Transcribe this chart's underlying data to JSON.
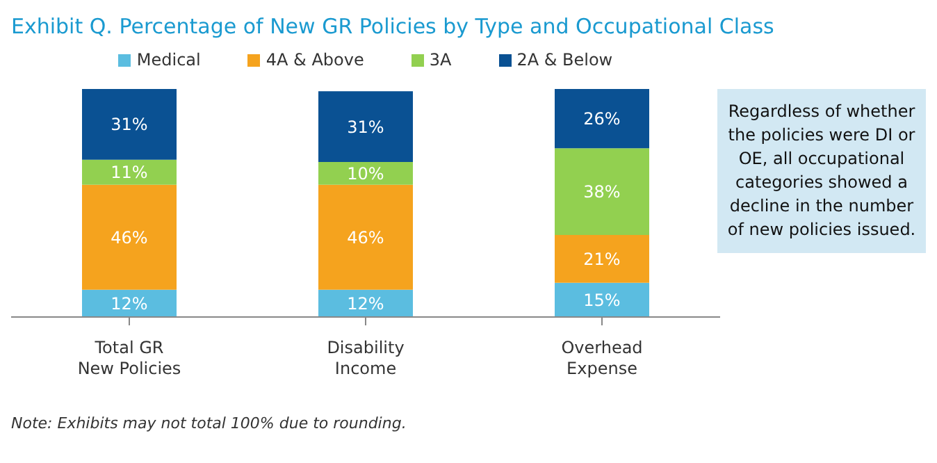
{
  "chart_data": {
    "type": "bar",
    "title": "Exhibit Q. Percentage of New GR Policies by Type and Occupational Class",
    "categories": [
      "Total GR New Policies",
      "Disability Income",
      "Overhead Expense"
    ],
    "stacked": true,
    "legend": "top",
    "grid": false,
    "series": [
      {
        "name": "Medical",
        "color": "#5bbde0",
        "values": [
          12,
          12,
          15
        ],
        "value_labels": [
          "12%",
          "12%",
          "15%"
        ]
      },
      {
        "name": "4A & Above",
        "color": "#f5a31e",
        "values": [
          46,
          46,
          21
        ],
        "value_labels": [
          "46%",
          "46%",
          "21%"
        ]
      },
      {
        "name": "3A",
        "color": "#92d050",
        "values": [
          11,
          10,
          38
        ],
        "value_labels": [
          "11%",
          "10%",
          "38%"
        ]
      },
      {
        "name": "2A & Below",
        "color": "#0a5193",
        "values": [
          31,
          31,
          26
        ],
        "value_labels": [
          "31%",
          "31%",
          "26%"
        ]
      }
    ],
    "annotations": [
      "Regardless of whether the policies were DI or OE, all occupational categories showed a decline in the number of new policies issued.",
      "Note: Exhibits may not total 100% due to rounding."
    ]
  }
}
